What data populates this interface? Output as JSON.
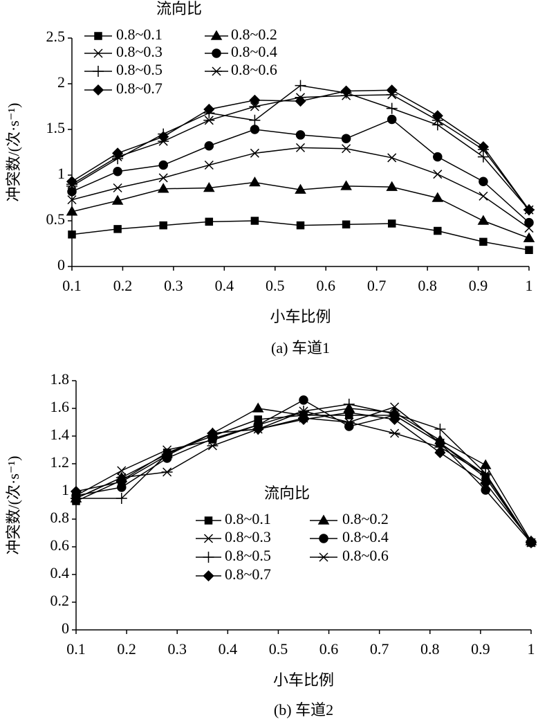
{
  "chart_data": [
    {
      "type": "line",
      "caption": "(a) 车道1",
      "x_label": "小车比例",
      "y_label": "冲突数/(次·s⁻¹)",
      "legend_title": "流向比",
      "legend": "upper left",
      "x": [
        0.1,
        0.19,
        0.28,
        0.37,
        0.46,
        0.55,
        0.64,
        0.73,
        0.82,
        0.91,
        1.0
      ],
      "xlim": [
        0.1,
        1
      ],
      "xticks": [
        0.1,
        0.2,
        0.3,
        0.4,
        0.5,
        0.6,
        0.7,
        0.8,
        0.9,
        1
      ],
      "ylim": [
        0,
        2.5
      ],
      "yticks": [
        0,
        0.5,
        1,
        1.5,
        2,
        2.5
      ],
      "series": [
        {
          "name": "0.8~0.1",
          "color": "#000000",
          "marker": "square",
          "values": [
            0.35,
            0.41,
            0.45,
            0.49,
            0.5,
            0.45,
            0.46,
            0.47,
            0.39,
            0.27,
            0.18
          ]
        },
        {
          "name": "0.8~0.2",
          "color": "#000000",
          "marker": "triangle",
          "values": [
            0.6,
            0.72,
            0.85,
            0.86,
            0.92,
            0.84,
            0.88,
            0.87,
            0.75,
            0.5,
            0.31
          ]
        },
        {
          "name": "0.8~0.3",
          "color": "#000000",
          "marker": "x",
          "values": [
            0.73,
            0.86,
            0.97,
            1.11,
            1.24,
            1.3,
            1.29,
            1.19,
            1.01,
            0.77,
            0.42
          ]
        },
        {
          "name": "0.8~0.4",
          "color": "#000000",
          "marker": "circle",
          "values": [
            0.82,
            1.04,
            1.11,
            1.32,
            1.5,
            1.44,
            1.4,
            1.61,
            1.2,
            0.93,
            0.48
          ]
        },
        {
          "name": "0.8~0.5",
          "color": "#000000",
          "marker": "plus",
          "values": [
            0.88,
            1.18,
            1.45,
            1.68,
            1.6,
            1.98,
            1.9,
            1.73,
            1.55,
            1.2,
            0.62
          ]
        },
        {
          "name": "0.8~0.6",
          "color": "#000000",
          "marker": "asterisk",
          "values": [
            0.9,
            1.2,
            1.37,
            1.6,
            1.75,
            1.85,
            1.87,
            1.88,
            1.6,
            1.28,
            0.62
          ]
        },
        {
          "name": "0.8~0.7",
          "color": "#000000",
          "marker": "diamond",
          "values": [
            0.93,
            1.24,
            1.42,
            1.72,
            1.82,
            1.81,
            1.92,
            1.93,
            1.65,
            1.31,
            0.62
          ]
        }
      ]
    },
    {
      "type": "line",
      "caption": "(b) 车道2",
      "x_label": "小车比例",
      "y_label": "冲突数/(次·s⁻¹)",
      "legend_title": "流向比",
      "legend": "center",
      "x": [
        0.1,
        0.19,
        0.28,
        0.37,
        0.46,
        0.55,
        0.64,
        0.73,
        0.82,
        0.91,
        1.0
      ],
      "xlim": [
        0.1,
        1
      ],
      "xticks": [
        0.1,
        0.2,
        0.3,
        0.4,
        0.5,
        0.6,
        0.7,
        0.8,
        0.9,
        1
      ],
      "ylim": [
        0,
        1.8
      ],
      "yticks": [
        0,
        0.2,
        0.4,
        0.6,
        0.8,
        1,
        1.2,
        1.4,
        1.6,
        1.8
      ],
      "series": [
        {
          "name": "0.8~0.1",
          "color": "#000000",
          "marker": "square",
          "values": [
            0.93,
            1.08,
            1.28,
            1.4,
            1.52,
            1.55,
            1.55,
            1.55,
            1.35,
            1.1,
            0.63
          ]
        },
        {
          "name": "0.8~0.2",
          "color": "#000000",
          "marker": "triangle",
          "values": [
            0.95,
            1.1,
            1.27,
            1.42,
            1.6,
            1.55,
            1.6,
            1.57,
            1.37,
            1.19,
            0.64
          ]
        },
        {
          "name": "0.8~0.3",
          "color": "#000000",
          "marker": "x",
          "values": [
            0.97,
            1.15,
            1.3,
            1.37,
            1.48,
            1.58,
            1.5,
            1.61,
            1.35,
            1.12,
            0.63
          ]
        },
        {
          "name": "0.8~0.4",
          "color": "#000000",
          "marker": "circle",
          "values": [
            0.97,
            1.03,
            1.24,
            1.38,
            1.48,
            1.66,
            1.47,
            1.55,
            1.35,
            1.01,
            0.63
          ]
        },
        {
          "name": "0.8~0.5",
          "color": "#000000",
          "marker": "plus",
          "values": [
            0.95,
            0.95,
            1.27,
            1.42,
            1.45,
            1.58,
            1.63,
            1.56,
            1.45,
            1.13,
            0.63
          ]
        },
        {
          "name": "0.8~0.6",
          "color": "#000000",
          "marker": "asterisk",
          "values": [
            0.95,
            1.1,
            1.14,
            1.33,
            1.45,
            1.53,
            1.5,
            1.42,
            1.32,
            1.12,
            0.63
          ]
        },
        {
          "name": "0.8~0.7",
          "color": "#000000",
          "marker": "diamond",
          "values": [
            1.0,
            1.07,
            1.26,
            1.42,
            1.45,
            1.52,
            1.57,
            1.52,
            1.28,
            1.06,
            0.64
          ]
        }
      ]
    }
  ]
}
